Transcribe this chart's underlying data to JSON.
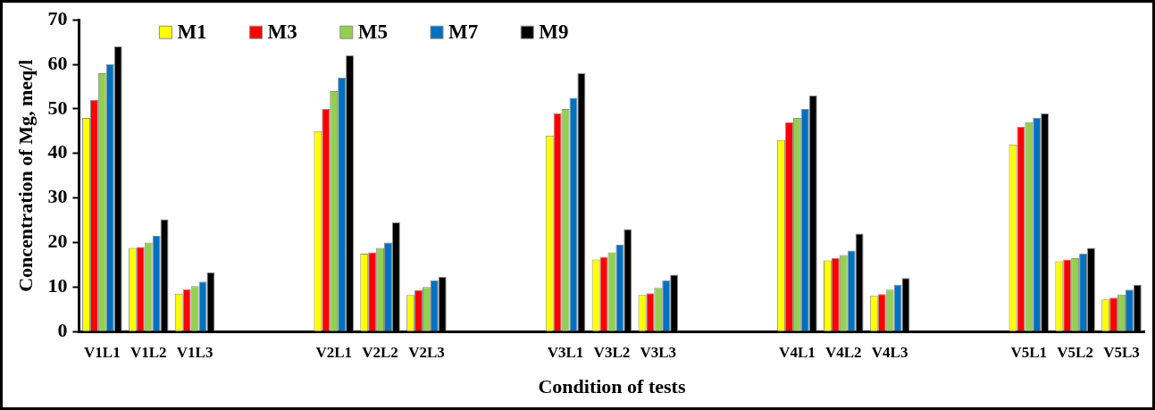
{
  "chart_data": {
    "type": "bar",
    "categories": [
      "V1L1",
      "V1L2",
      "V1L3",
      null,
      null,
      "V2L1",
      "V2L2",
      "V2L3",
      null,
      null,
      "V3L1",
      "V3L2",
      "V3L3",
      null,
      null,
      "V4L1",
      "V4L2",
      "V4L3",
      null,
      null,
      "V5L1",
      "V5L2",
      "V5L3"
    ],
    "series": [
      {
        "name": "M1",
        "color": "#ffff00",
        "values": [
          48,
          18.8,
          8.5,
          null,
          null,
          45,
          17.5,
          8.2,
          null,
          null,
          44,
          16.2,
          8.2,
          null,
          null,
          43,
          16,
          8,
          null,
          null,
          42,
          15.8,
          7.2
        ]
      },
      {
        "name": "M3",
        "color": "#ff0000",
        "values": [
          52,
          19,
          9.5,
          null,
          null,
          50,
          17.8,
          9.3,
          null,
          null,
          49,
          16.8,
          8.6,
          null,
          null,
          47,
          16.5,
          8.4,
          null,
          null,
          46,
          16.2,
          7.6
        ]
      },
      {
        "name": "M5",
        "color": "#92d050",
        "values": [
          58,
          20,
          10.2,
          null,
          null,
          54,
          18.8,
          10,
          null,
          null,
          50,
          17.8,
          9.8,
          null,
          null,
          48,
          17.2,
          9.4,
          null,
          null,
          47,
          16.5,
          8.3
        ]
      },
      {
        "name": "M7",
        "color": "#0070c0",
        "values": [
          60,
          21.5,
          11.2,
          null,
          null,
          57,
          20,
          11.5,
          null,
          null,
          52.5,
          19.5,
          11.5,
          null,
          null,
          50,
          18.2,
          10.5,
          null,
          null,
          48,
          17.5,
          9.4
        ]
      },
      {
        "name": "M9",
        "color": "#000000",
        "values": [
          64,
          25.2,
          13.3,
          null,
          null,
          62,
          24.5,
          12.3,
          null,
          null,
          58,
          23,
          12.8,
          null,
          null,
          53,
          22,
          12,
          null,
          null,
          49,
          18.8,
          10.5
        ]
      }
    ],
    "xlabel": "Condition of tests",
    "ylabel": "Concentration of Mg, meq/l",
    "ylim": [
      0,
      70
    ],
    "yticks": [
      0,
      10,
      20,
      30,
      40,
      50,
      60,
      70
    ],
    "grid": false,
    "legend": "top left"
  }
}
